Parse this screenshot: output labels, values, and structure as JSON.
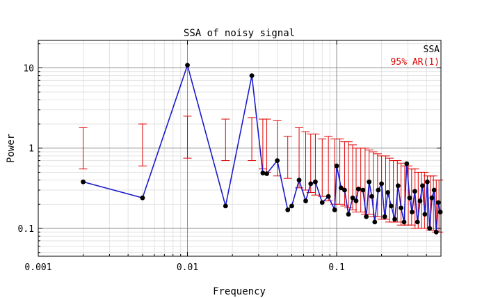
{
  "chart_data": {
    "type": "line",
    "title": "SSA of noisy signal",
    "xlabel": "Frequency",
    "ylabel": "Power",
    "xscale": "log",
    "yscale": "log",
    "xlim": [
      0.001,
      0.5
    ],
    "ylim": [
      0.045,
      22
    ],
    "x_ticks": [
      0.001,
      0.01,
      0.1
    ],
    "x_tick_labels": [
      "0.001",
      "0.01",
      "0.1"
    ],
    "y_ticks": [
      0.1,
      1,
      10
    ],
    "y_tick_labels": [
      "0.1",
      "1",
      "10"
    ],
    "grid": true,
    "legend_position": "top-right",
    "colors": {
      "ssa": "#1a1acc",
      "ar": "#e00000",
      "points": "#000000"
    },
    "series": [
      {
        "name": "SSA",
        "type": "line-markers",
        "x": [
          0.002,
          0.005,
          0.01,
          0.018,
          0.027,
          0.032,
          0.034,
          0.04,
          0.047,
          0.05,
          0.056,
          0.062,
          0.067,
          0.072,
          0.08,
          0.088,
          0.097,
          0.1,
          0.107,
          0.113,
          0.12,
          0.128,
          0.135,
          0.14,
          0.15,
          0.158,
          0.165,
          0.172,
          0.18,
          0.19,
          0.2,
          0.21,
          0.22,
          0.232,
          0.245,
          0.258,
          0.27,
          0.283,
          0.295,
          0.308,
          0.32,
          0.334,
          0.348,
          0.362,
          0.376,
          0.39,
          0.405,
          0.42,
          0.435,
          0.45,
          0.465,
          0.48,
          0.495
        ],
        "values": [
          0.38,
          0.24,
          10.8,
          0.19,
          8.0,
          0.49,
          0.48,
          0.7,
          0.17,
          0.19,
          0.4,
          0.22,
          0.36,
          0.38,
          0.21,
          0.25,
          0.17,
          0.6,
          0.32,
          0.3,
          0.15,
          0.24,
          0.22,
          0.31,
          0.3,
          0.14,
          0.38,
          0.25,
          0.12,
          0.3,
          0.36,
          0.14,
          0.28,
          0.19,
          0.13,
          0.34,
          0.18,
          0.12,
          0.64,
          0.24,
          0.16,
          0.29,
          0.12,
          0.22,
          0.34,
          0.15,
          0.38,
          0.1,
          0.24,
          0.3,
          0.09,
          0.21,
          0.16
        ]
      },
      {
        "name": "95% AR(1)",
        "type": "errorbar",
        "x": [
          0.002,
          0.005,
          0.01,
          0.018,
          0.027,
          0.032,
          0.034,
          0.04,
          0.047,
          0.056,
          0.062,
          0.067,
          0.072,
          0.08,
          0.088,
          0.097,
          0.105,
          0.113,
          0.12,
          0.128,
          0.135,
          0.145,
          0.155,
          0.165,
          0.176,
          0.188,
          0.2,
          0.213,
          0.226,
          0.24,
          0.255,
          0.27,
          0.286,
          0.302,
          0.318,
          0.335,
          0.352,
          0.37,
          0.388,
          0.406,
          0.425,
          0.445,
          0.465,
          0.485
        ],
        "upper": [
          1.8,
          2.0,
          2.5,
          2.3,
          2.4,
          2.3,
          2.3,
          2.2,
          1.4,
          1.8,
          1.6,
          1.5,
          1.5,
          1.3,
          1.4,
          1.3,
          1.3,
          1.2,
          1.2,
          1.1,
          1.0,
          1.0,
          1.0,
          0.95,
          0.9,
          0.85,
          0.8,
          0.8,
          0.75,
          0.7,
          0.7,
          0.65,
          0.6,
          0.6,
          0.55,
          0.55,
          0.5,
          0.5,
          0.5,
          0.45,
          0.45,
          0.45,
          0.4,
          0.4
        ],
        "lower": [
          0.55,
          0.6,
          0.75,
          0.7,
          0.7,
          0.55,
          0.5,
          0.45,
          0.42,
          0.32,
          0.3,
          0.28,
          0.26,
          0.25,
          0.22,
          0.2,
          0.2,
          0.19,
          0.18,
          0.17,
          0.16,
          0.16,
          0.15,
          0.15,
          0.14,
          0.14,
          0.13,
          0.13,
          0.12,
          0.12,
          0.12,
          0.11,
          0.11,
          0.11,
          0.11,
          0.1,
          0.1,
          0.1,
          0.1,
          0.1,
          0.095,
          0.095,
          0.09,
          0.09
        ]
      }
    ]
  }
}
